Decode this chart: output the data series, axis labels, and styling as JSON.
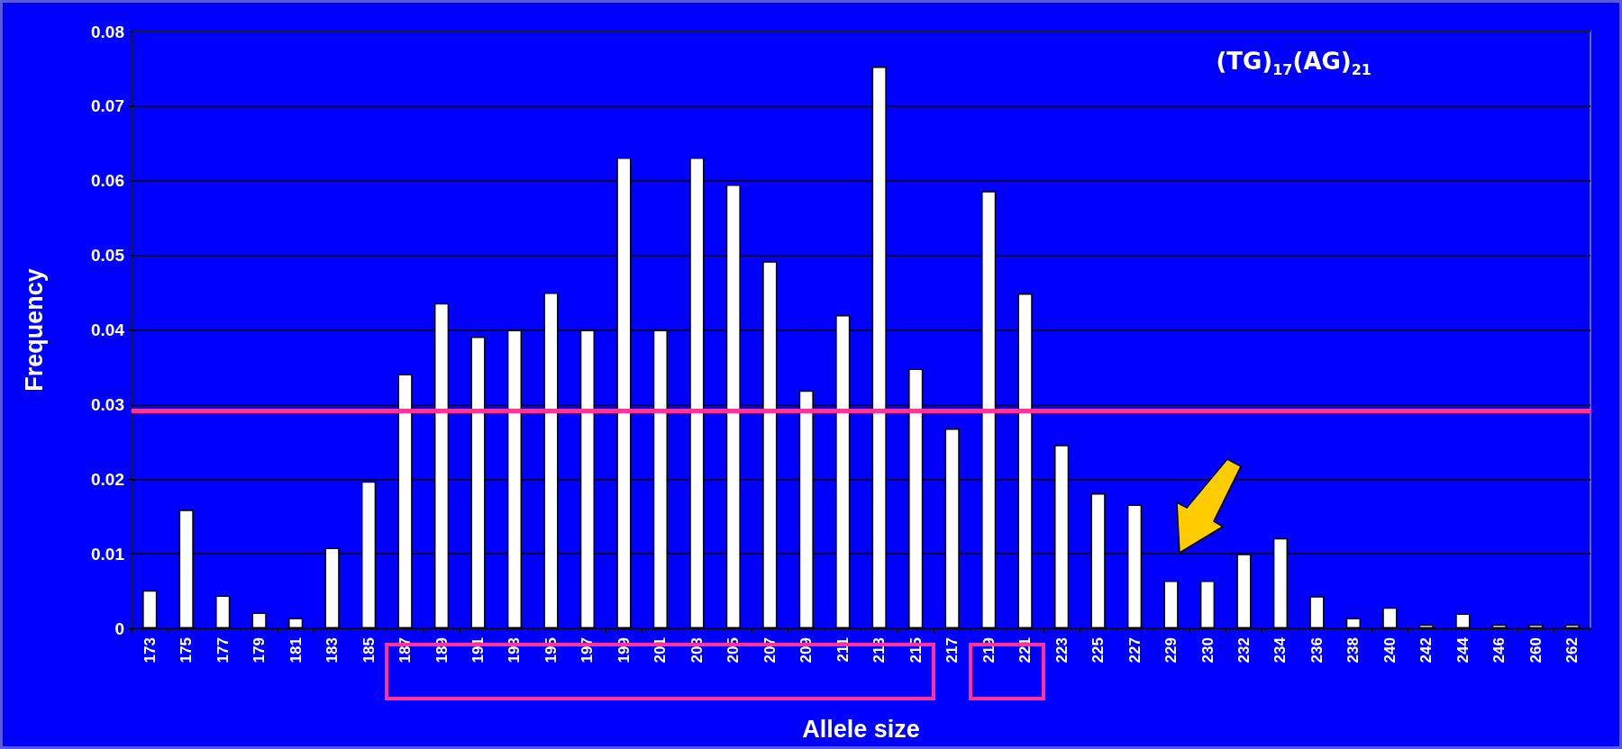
{
  "chart_data": {
    "type": "bar",
    "xlabel": "Allele size",
    "ylabel": "Frequency",
    "categories": [
      "173",
      "175",
      "177",
      "179",
      "181",
      "183",
      "185",
      "187",
      "189",
      "191",
      "193",
      "195",
      "197",
      "199",
      "201",
      "203",
      "205",
      "207",
      "209",
      "211",
      "213",
      "215",
      "217",
      "219",
      "221",
      "223",
      "225",
      "227",
      "229",
      "230",
      "232",
      "234",
      "236",
      "238",
      "240",
      "242",
      "244",
      "246",
      "260",
      "262"
    ],
    "values": [
      0.0051,
      0.0159,
      0.0044,
      0.0021,
      0.0014,
      0.0108,
      0.0197,
      0.0341,
      0.0436,
      0.0391,
      0.04,
      0.045,
      0.04,
      0.0631,
      0.04,
      0.0631,
      0.0595,
      0.0492,
      0.0319,
      0.042,
      0.0753,
      0.0348,
      0.0268,
      0.0586,
      0.0449,
      0.0246,
      0.0181,
      0.0166,
      0.0064,
      0.0064,
      0.01,
      0.0121,
      0.0043,
      0.0014,
      0.0028,
      0.0005,
      0.002,
      0.0005,
      0.0005,
      0.0005
    ],
    "color": "#ffffff",
    "ylim": [
      0,
      0.08
    ],
    "yticks": [
      0,
      0.01,
      0.02,
      0.03,
      0.04,
      0.05,
      0.06,
      0.07,
      0.08
    ],
    "grid": "y",
    "ref_lines": [
      {
        "axis": "y",
        "value": 0.0292,
        "color": "#ff3399"
      }
    ],
    "annotations": [
      "(TG)$_{17}$(AG)$_{21}$"
    ]
  }
}
